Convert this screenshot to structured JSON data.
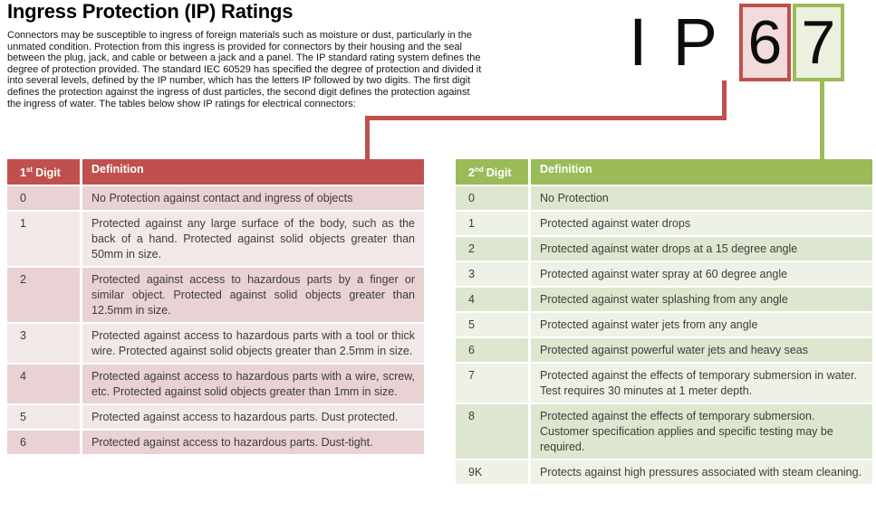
{
  "page": {
    "title": "Ingress Protection (IP) Ratings",
    "intro": "Connectors may be susceptible to ingress of foreign materials such as moisture or dust, particularly in the unmated condition. Protection from this ingress is provided for connectors by their housing and the seal between the plug, jack, and cable or between a jack and a panel. The IP standard rating system defines the degree of protection provided. The standard IEC 60529 has specified the degree of protection and divided it into several levels, defined by the IP number, which has the letters IP followed by two digits. The first digit defines the protection against the ingress of dust particles, the second digit defines the protection against the ingress of water. The tables below show IP ratings for electrical connectors:"
  },
  "ip_graphic": {
    "letter_i": "I",
    "letter_p": "P",
    "first_digit": "6",
    "second_digit": "7"
  },
  "colors": {
    "first_digit_accent": "#c0504d",
    "first_digit_band_dark": "#e8d2d3",
    "first_digit_band_light": "#f3e8e8",
    "second_digit_accent": "#9bbb59",
    "second_digit_band_dark": "#dde7cf",
    "second_digit_band_light": "#eef2e6"
  },
  "first_digit_table": {
    "header": {
      "digit_number": "1",
      "digit_ordinal": "st",
      "digit_word": "Digit",
      "definition_label": "Definition"
    },
    "rows": [
      {
        "digit": "0",
        "definition": "No Protection against contact and ingress of objects"
      },
      {
        "digit": "1",
        "definition": "Protected against any large surface of the body, such as the back of a hand. Protected against solid objects greater than 50mm in size."
      },
      {
        "digit": "2",
        "definition": "Protected against access to hazardous parts by a finger or similar object. Protected against solid objects greater than 12.5mm in size."
      },
      {
        "digit": "3",
        "definition": "Protected against access to hazardous parts with a tool or thick wire. Protected against solid objects greater than 2.5mm in size."
      },
      {
        "digit": "4",
        "definition": "Protected against access to hazardous parts with a wire, screw, etc. Protected against solid objects greater than 1mm in size."
      },
      {
        "digit": "5",
        "definition": "Protected against access to hazardous parts. Dust protected."
      },
      {
        "digit": "6",
        "definition": "Protected against access to hazardous parts. Dust-tight."
      }
    ]
  },
  "second_digit_table": {
    "header": {
      "digit_number": "2",
      "digit_ordinal": "nd",
      "digit_word": "Digit",
      "definition_label": "Definition"
    },
    "rows": [
      {
        "digit": "0",
        "definition": "No Protection"
      },
      {
        "digit": "1",
        "definition": "Protected against water drops"
      },
      {
        "digit": "2",
        "definition": "Protected against water drops at a 15 degree angle"
      },
      {
        "digit": "3",
        "definition": "Protected against water spray at 60 degree angle"
      },
      {
        "digit": "4",
        "definition": "Protected against water splashing from any angle"
      },
      {
        "digit": "5",
        "definition": "Protected against water jets from any angle"
      },
      {
        "digit": "6",
        "definition": "Protected against powerful water jets and heavy seas"
      },
      {
        "digit": "7",
        "definition": "Protected against the effects of temporary submersion in water. Test requires 30 minutes at 1 meter depth."
      },
      {
        "digit": "8",
        "definition": "Protected against the effects of temporary submersion. Customer specification applies and specific testing may be required."
      },
      {
        "digit": "9K",
        "definition": "Protects against high pressures associated with steam cleaning."
      }
    ]
  }
}
